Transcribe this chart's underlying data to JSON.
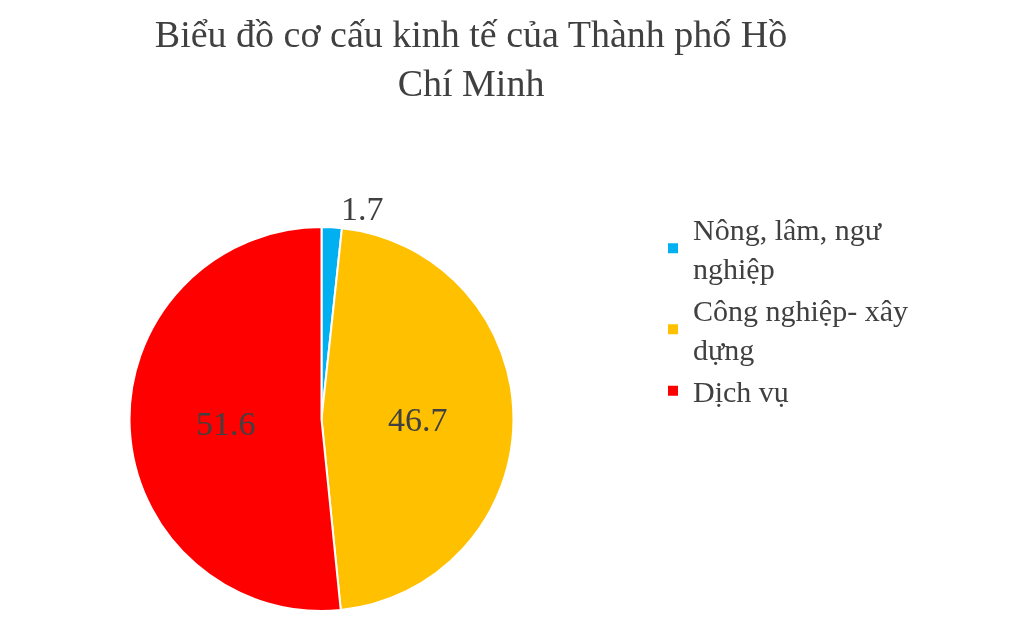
{
  "chart_data": {
    "type": "pie",
    "title": "Biểu đồ cơ cấu kinh tế của Thành phố Hồ Chí Minh",
    "categories": [
      "Nông, lâm, ngư nghiệp",
      "Công nghiệp- xây dựng",
      "Dịch vụ"
    ],
    "values": [
      1.7,
      46.7,
      51.6
    ],
    "colors": [
      "#00b0f0",
      "#ffc000",
      "#ff0000"
    ],
    "data_labels": true,
    "legend": "right"
  }
}
